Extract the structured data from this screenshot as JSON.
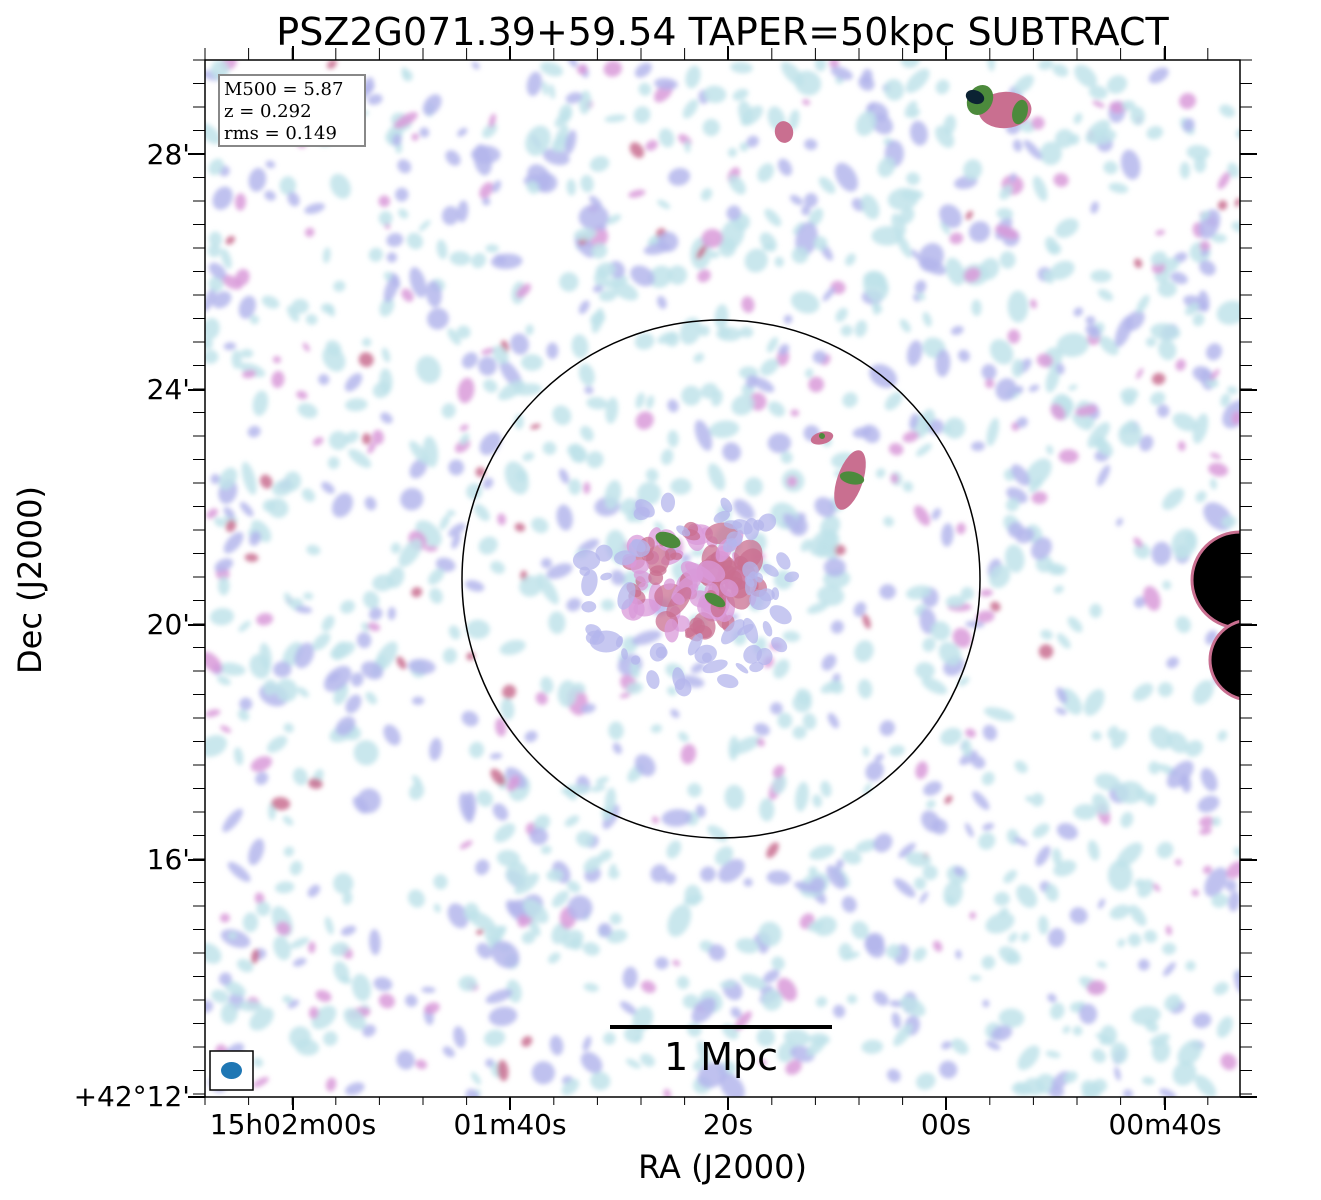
{
  "title": "PSZ2G071.39+59.54 TAPER=50kpc SUBTRACT",
  "legend": {
    "lines": [
      "M500 = 5.87",
      "z = 0.292",
      "rms = 0.149"
    ]
  },
  "axes": {
    "xlabel": "RA (J2000)",
    "ylabel": "Dec (J2000)",
    "xticks": [
      "15h02m00s",
      "01m40s",
      "20s",
      "00s",
      "00m40s"
    ],
    "yticks": [
      "28'",
      "24'",
      "20'",
      "16'",
      "+42°12'"
    ]
  },
  "scale_bar": {
    "label": "1 Mpc"
  },
  "colors": {
    "faint": "#bfe3ea",
    "low": "#b4b6ec",
    "mid": "#d99ad9",
    "high": "#c96f90",
    "peak": "#4c8a3c",
    "core": "#0b2233",
    "beam": "#1f77b4"
  }
}
